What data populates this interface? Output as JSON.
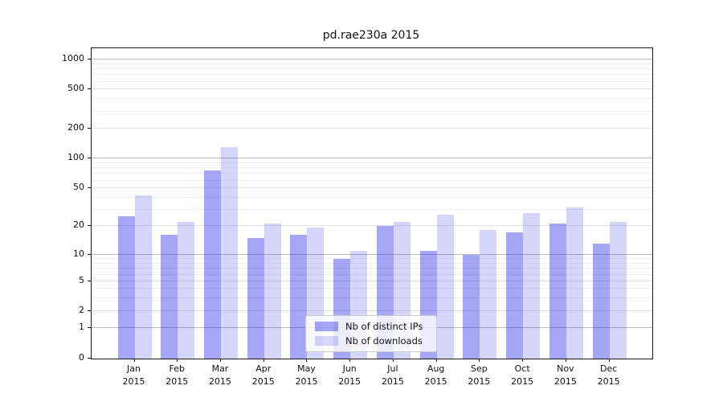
{
  "figure": {
    "title": "pd.rae230a 2015",
    "background_color": "#ffffff",
    "spine_color": "#1a1a1a"
  },
  "chart_data": {
    "type": "bar",
    "title": "pd.rae230a 2015",
    "year": "2015",
    "months": [
      "Jan",
      "Feb",
      "Mar",
      "Apr",
      "May",
      "Jun",
      "Jul",
      "Aug",
      "Sep",
      "Oct",
      "Nov",
      "Dec"
    ],
    "categories": [
      "Jan 2015",
      "Feb 2015",
      "Mar 2015",
      "Apr 2015",
      "May 2015",
      "Jun 2015",
      "Jul 2015",
      "Aug 2015",
      "Sep 2015",
      "Oct 2015",
      "Nov 2015",
      "Dec 2015"
    ],
    "series": [
      {
        "name": "Nb of distinct IPs",
        "color": "rgba(0,0,230,0.35)",
        "values": [
          25,
          16,
          75,
          15,
          16,
          9,
          20,
          11,
          10,
          17,
          21,
          13
        ]
      },
      {
        "name": "Nb of downloads",
        "color": "rgba(0,0,230,0.16)",
        "values": [
          42,
          22,
          130,
          21,
          19,
          11,
          22,
          26,
          18,
          27,
          31,
          22
        ]
      }
    ],
    "y_axis": {
      "scale": "symlog",
      "tick_values": [
        0,
        1,
        2,
        5,
        10,
        20,
        50,
        100,
        200,
        500,
        1000
      ],
      "major_tick_values": [
        1,
        10,
        100,
        1000
      ],
      "minor_grid_values": [
        3,
        4,
        6,
        7,
        8,
        9,
        30,
        40,
        60,
        70,
        80,
        90,
        300,
        400,
        600,
        700,
        800,
        900
      ],
      "ylim": [
        0,
        1400
      ]
    },
    "grid": "horizontal major+minor",
    "legend_position": "lower center inside",
    "major_grid_color": "#bdbdbd",
    "minor_labeled_grid_color": "#e2e2e2",
    "minor_grid_color": "#f0f0f0"
  },
  "legend": {
    "items": [
      {
        "label": "Nb of distinct IPs",
        "color": "rgba(0,0,230,0.35)"
      },
      {
        "label": "Nb of downloads",
        "color": "rgba(0,0,230,0.16)"
      }
    ]
  }
}
